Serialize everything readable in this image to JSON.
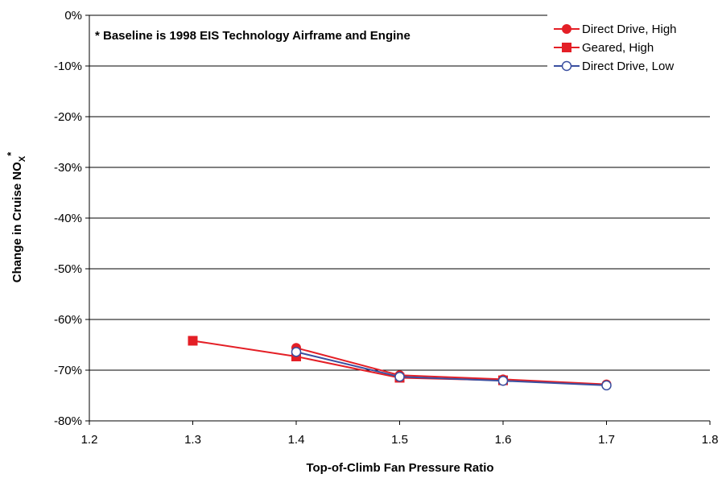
{
  "chart_data": {
    "type": "line",
    "title": "",
    "xlabel": "Top-of-Climb Fan Pressure Ratio",
    "ylabel_main": "Change in Cruise NO",
    "ylabel_sub": "X",
    "ylabel_sup": "*",
    "annotation": "* Baseline is 1998 EIS Technology Airframe and Engine",
    "xlim": [
      1.2,
      1.8
    ],
    "ylim": [
      -80,
      0
    ],
    "x_ticks": [
      1.2,
      1.3,
      1.4,
      1.5,
      1.6,
      1.7,
      1.8
    ],
    "x_tick_labels": [
      "1.2",
      "1.3",
      "1.4",
      "1.5",
      "1.6",
      "1.7",
      "1.8"
    ],
    "y_ticks": [
      0,
      -10,
      -20,
      -30,
      -40,
      -50,
      -60,
      -70,
      -80
    ],
    "y_tick_labels": [
      "0%",
      "-10%",
      "-20%",
      "-30%",
      "-40%",
      "-50%",
      "-60%",
      "-70%",
      "-80%"
    ],
    "grid": "horizontal",
    "legend_position": "top-right",
    "series": [
      {
        "name": "Direct Drive, High",
        "color": "#e41f26",
        "marker": "filled-circle",
        "x": [
          1.4,
          1.5,
          1.6,
          1.7
        ],
        "y": [
          -65.6,
          -71.0,
          -71.8,
          -72.8
        ]
      },
      {
        "name": "Geared, High",
        "color": "#e41f26",
        "marker": "filled-square",
        "x": [
          1.3,
          1.4,
          1.5,
          1.6
        ],
        "y": [
          -64.2,
          -67.3,
          -71.5,
          -72.0
        ]
      },
      {
        "name": "Direct Drive, Low",
        "color": "#3a4fa0",
        "marker": "open-circle",
        "x": [
          1.4,
          1.5,
          1.6,
          1.7
        ],
        "y": [
          -66.4,
          -71.3,
          -72.1,
          -73.0
        ]
      }
    ]
  }
}
